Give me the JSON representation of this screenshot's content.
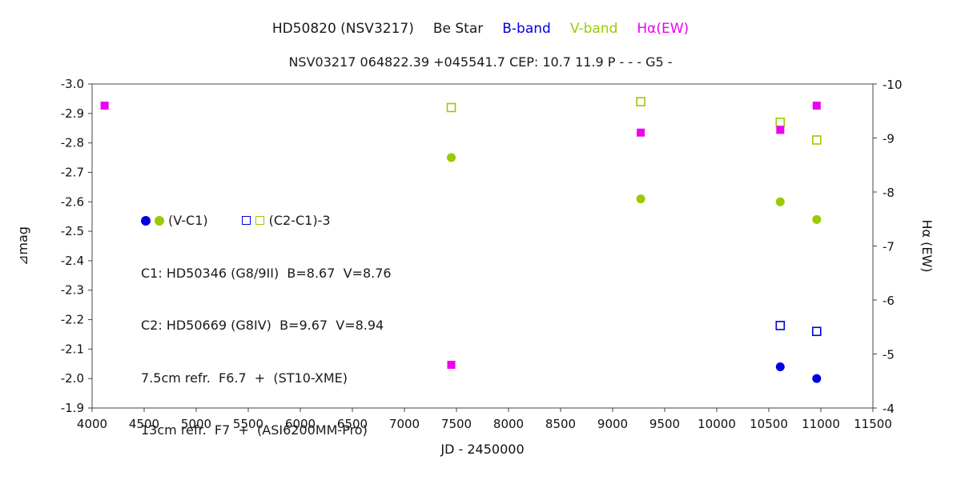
{
  "title": {
    "star_name": "HD50820 (NSV3217)",
    "star_type": "Be Star",
    "b_band_label": "B-band",
    "v_band_label": "V-band",
    "halpha_label": "Hα(EW)",
    "subtitle": "NSV03217 064822.39 +045541.7 CEP: 10.7 11.9 P - - - G5 -"
  },
  "legend": {
    "series1_label": "(V-C1)",
    "series2_label": "(C2-C1)-3",
    "comparison1": "C1: HD50346 (G8/9II)  B=8.67  V=8.76",
    "comparison2": "C2: HD50669 (G8IV)  B=9.67  V=8.94",
    "instrument1": "7.5cm refr.  F6.7  +  (ST10-XME)",
    "instrument2": "13cm refr.  F7  +  (ASI6200MM-Pro)"
  },
  "colors": {
    "b_band": "#0000dd",
    "v_band": "#9aca00",
    "halpha": "#ee00ee",
    "axis": "#444444",
    "text": "#1a1a1a"
  },
  "chart_data": {
    "type": "scatter",
    "title": "HD50820 (NSV3217)  Be Star  B-band  V-band  Hα(EW)",
    "subtitle": "NSV03217 064822.39 +045541.7 CEP: 10.7 11.9 P - - - G5 -",
    "xlabel": "JD - 2450000",
    "ylabel_left": "⊿mag",
    "ylabel_right": "Hα (EW)",
    "xlim": [
      4000,
      11500
    ],
    "xticks": [
      4000,
      4500,
      5000,
      5500,
      6000,
      6500,
      7000,
      7500,
      8000,
      8500,
      9000,
      9500,
      10000,
      10500,
      11000,
      11500
    ],
    "ylim_left": [
      -3.0,
      -1.9
    ],
    "yticks_left": [
      -3.0,
      -2.9,
      -2.8,
      -2.7,
      -2.6,
      -2.5,
      -2.4,
      -2.3,
      -2.2,
      -2.1,
      -2.0,
      -1.9
    ],
    "ylim_right": [
      -10,
      -4
    ],
    "yticks_right": [
      -10,
      -9,
      -8,
      -7,
      -6,
      -5,
      -4
    ],
    "grid": false,
    "legend_position": "inside-left",
    "series": [
      {
        "name": "B-band (V-C1)",
        "marker": "circle-filled",
        "color_key": "b_band",
        "axis": "left",
        "points": [
          [
            10610,
            -2.04
          ],
          [
            10960,
            -2.0
          ]
        ]
      },
      {
        "name": "B-band (C2-C1)-3",
        "marker": "square-open",
        "color_key": "b_band",
        "axis": "left",
        "points": [
          [
            10610,
            -2.18
          ],
          [
            10960,
            -2.16
          ]
        ]
      },
      {
        "name": "V-band (V-C1)",
        "marker": "circle-filled",
        "color_key": "v_band",
        "axis": "left",
        "points": [
          [
            7450,
            -2.75
          ],
          [
            9270,
            -2.61
          ],
          [
            10610,
            -2.6
          ],
          [
            10960,
            -2.54
          ]
        ]
      },
      {
        "name": "V-band (C2-C1)-3",
        "marker": "square-open",
        "color_key": "v_band",
        "axis": "left",
        "points": [
          [
            7450,
            -2.92
          ],
          [
            9270,
            -2.94
          ],
          [
            10610,
            -2.87
          ],
          [
            10960,
            -2.81
          ]
        ]
      },
      {
        "name": "Hα (EW)",
        "marker": "square-filled",
        "color_key": "halpha",
        "axis": "right",
        "points": [
          [
            4120,
            -9.6
          ],
          [
            7450,
            -4.8
          ],
          [
            9270,
            -9.1
          ],
          [
            10610,
            -9.15
          ],
          [
            10960,
            -9.6
          ]
        ]
      }
    ]
  }
}
